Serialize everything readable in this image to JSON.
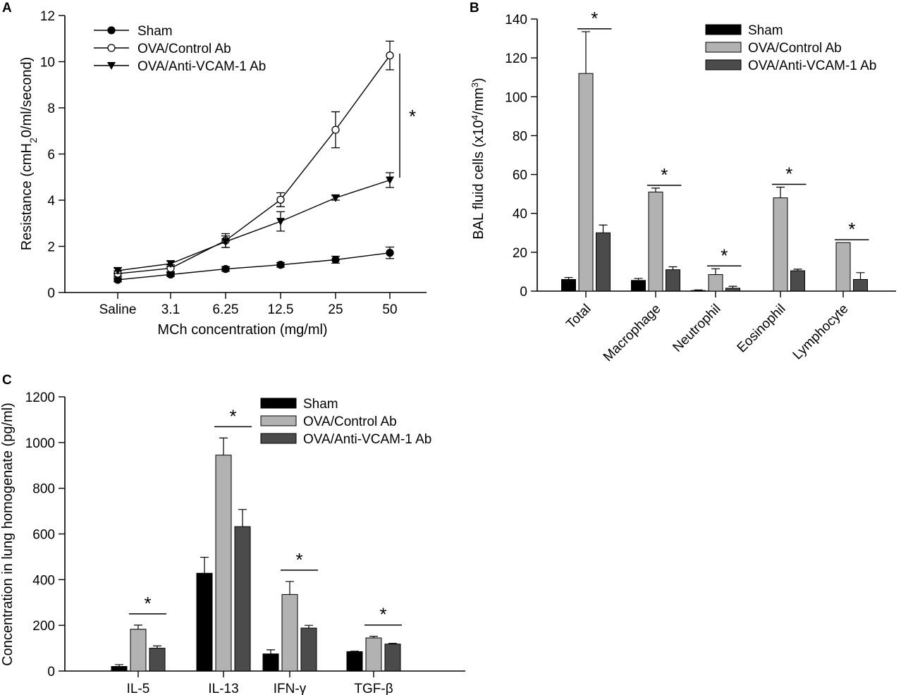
{
  "chart_data": [
    {
      "panel_label": "A",
      "type": "line",
      "categories": [
        "Saline",
        "3.1",
        "6.25",
        "12.5",
        "25",
        "50"
      ],
      "xlabel": "MCh concentration (mg/ml)",
      "ylabel_parts": [
        "Resistance (cmH",
        "2",
        "0/ml/second)"
      ],
      "ylim": [
        0,
        12
      ],
      "yticks": [
        "0",
        "2",
        "4",
        "6",
        "8",
        "10",
        "12"
      ],
      "legend_position": "top-left",
      "significance_label": "*",
      "series": [
        {
          "name": "Sham",
          "marker": "filled-circle",
          "values": [
            0.55,
            0.78,
            1.02,
            1.2,
            1.42,
            1.72
          ],
          "errors": [
            0.08,
            0.08,
            0.1,
            0.1,
            0.15,
            0.25
          ]
        },
        {
          "name": "OVA/Control Ab",
          "marker": "open-circle",
          "values": [
            0.82,
            1.05,
            2.25,
            4.02,
            7.05,
            10.27
          ],
          "errors": [
            0.12,
            0.15,
            0.3,
            0.3,
            0.78,
            0.62
          ]
        },
        {
          "name": "OVA/Anti-VCAM-1 Ab",
          "marker": "filled-triangle-down",
          "values": [
            0.95,
            1.25,
            2.2,
            3.08,
            4.1,
            4.87
          ],
          "errors": [
            0.12,
            0.12,
            0.25,
            0.42,
            0.1,
            0.32
          ]
        }
      ]
    },
    {
      "panel_label": "B",
      "type": "bar",
      "categories": [
        "Total",
        "Macrophage",
        "Neutrophil",
        "Eosinophil",
        "Lymphocyte"
      ],
      "ylabel_parts": [
        "BAL fluid cells (x10",
        "4",
        "/mm",
        "3",
        ")"
      ],
      "ylim": [
        0,
        140
      ],
      "yticks": [
        "0",
        "20",
        "40",
        "60",
        "80",
        "100",
        "120",
        "140"
      ],
      "legend_position": "top-right",
      "significance_label": "*",
      "series": [
        {
          "name": "Sham",
          "color": "#000000",
          "values": [
            6,
            5.5,
            0.3,
            0,
            0
          ],
          "errors": [
            1,
            1,
            0.3,
            0,
            0
          ]
        },
        {
          "name": "OVA/Control Ab",
          "color": "#b2b2b2",
          "values": [
            112,
            51,
            8.5,
            48,
            25
          ],
          "errors": [
            21.5,
            2,
            3,
            5.5,
            0
          ]
        },
        {
          "name": "OVA/Anti-VCAM-1 Ab",
          "color": "#4b4b4b",
          "values": [
            30,
            11,
            1.5,
            10.5,
            6
          ],
          "errors": [
            4,
            1.5,
            1,
            0.8,
            3.5
          ]
        }
      ]
    },
    {
      "panel_label": "C",
      "type": "bar",
      "categories": [
        "IL-5",
        "IL-13",
        "IFN-γ",
        "TGF-β"
      ],
      "ylabel": "Concentration in lung homogenate (pg/ml)",
      "ylim": [
        0,
        1200
      ],
      "yticks": [
        "0",
        "200",
        "400",
        "600",
        "800",
        "1000",
        "1200"
      ],
      "legend_position": "top-center",
      "significance_label": "*",
      "series": [
        {
          "name": "Sham",
          "color": "#000000",
          "values": [
            20,
            428,
            75,
            85
          ],
          "errors": [
            8,
            70,
            18,
            2
          ]
        },
        {
          "name": "OVA/Control Ab",
          "color": "#b2b2b2",
          "values": [
            183,
            945,
            335,
            145
          ],
          "errors": [
            18,
            75,
            57,
            7
          ]
        },
        {
          "name": "OVA/Anti-VCAM-1 Ab",
          "color": "#4b4b4b",
          "values": [
            100,
            632,
            188,
            118
          ],
          "errors": [
            10,
            75,
            12,
            3
          ]
        }
      ]
    }
  ]
}
